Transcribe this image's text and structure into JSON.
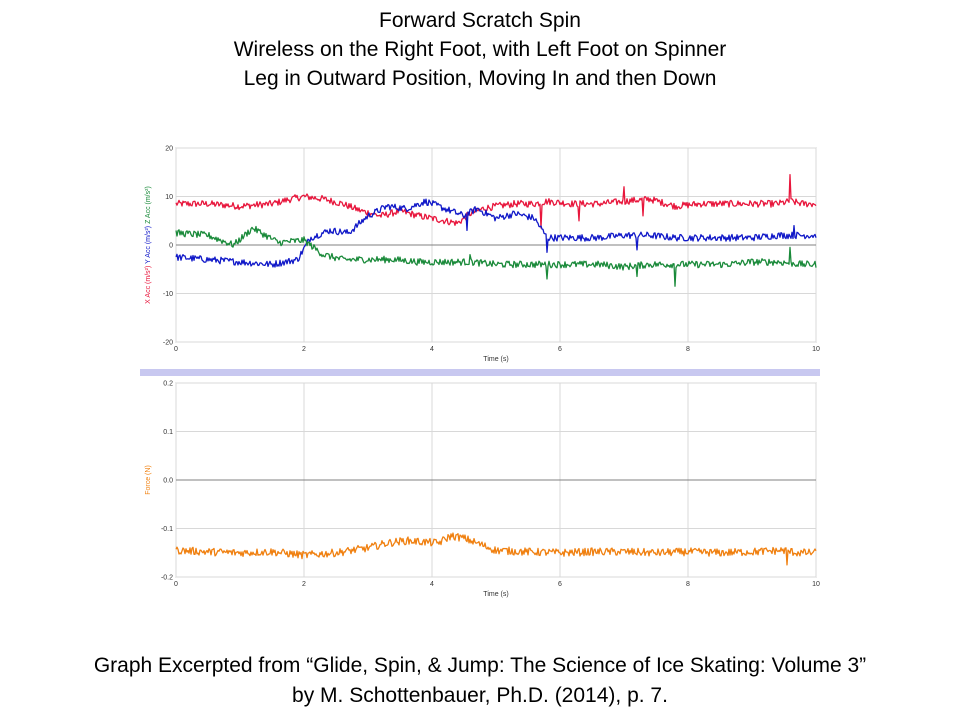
{
  "header": {
    "line1": "Forward Scratch Spin",
    "line2": "Wireless on the Right Foot, with Left Foot on Spinner",
    "line3": "Leg in Outward Position, Moving In and then Down"
  },
  "caption": {
    "line1": "Graph Excerpted from “Glide, Spin, & Jump: The Science of Ice Skating: Volume 3”",
    "line2": "by M. Schottenbauer, Ph.D. (2014), p. 7."
  },
  "colors": {
    "x_acc": "#e8163c",
    "y_acc": "#1018c8",
    "z_acc": "#1a8a3a",
    "force": "#f08010",
    "divider": "#c8c8f0",
    "grid": "#d8d8d8",
    "zero_line": "#808080"
  },
  "chart_data": [
    {
      "type": "line",
      "xlabel": "Time (s)",
      "ylabels": [
        "X Acc (m/s²)",
        "Y Acc (m/s²)",
        "Z Acc (m/s²)"
      ],
      "xlim": [
        0,
        10
      ],
      "ylim": [
        -20,
        20
      ],
      "x_ticks": [
        "0",
        "2",
        "4",
        "6",
        "8",
        "10"
      ],
      "y_ticks": [
        "20",
        "10",
        "0",
        "-10",
        "-20"
      ],
      "grid": true,
      "series": [
        {
          "name": "X Acc",
          "color_key": "x_acc",
          "x": [
            0,
            0.5,
            1.0,
            1.5,
            1.8,
            2.0,
            2.3,
            2.6,
            2.9,
            3.2,
            3.5,
            3.8,
            4.0,
            4.2,
            4.4,
            4.6,
            4.8,
            5.0,
            5.3,
            5.6,
            5.8,
            6.2,
            6.6,
            7.0,
            7.4,
            7.8,
            8.2,
            8.6,
            9.0,
            9.4,
            9.6,
            9.8,
            10.0
          ],
          "values": [
            8.5,
            8.5,
            8.0,
            8.5,
            9.5,
            10.0,
            9.5,
            8.5,
            7.0,
            6.0,
            7.0,
            6.0,
            5.5,
            5.0,
            4.5,
            6.5,
            7.5,
            8.0,
            8.5,
            8.5,
            9.0,
            8.5,
            8.5,
            9.0,
            9.5,
            8.0,
            8.5,
            8.5,
            8.5,
            8.5,
            9.0,
            8.5,
            8.5
          ],
          "spikes": [
            {
              "x": 5.7,
              "min": 3.5,
              "max": 13.5
            },
            {
              "x": 6.3,
              "min": 5.0,
              "max": 12.0
            },
            {
              "x": 7.0,
              "min": 5.5,
              "max": 12.0
            },
            {
              "x": 7.3,
              "min": 6.0,
              "max": 11.5
            },
            {
              "x": 9.6,
              "min": 4.5,
              "max": 14.5
            }
          ]
        },
        {
          "name": "Y Acc",
          "color_key": "y_acc",
          "x": [
            0,
            0.5,
            1.0,
            1.5,
            1.9,
            2.1,
            2.4,
            2.7,
            3.0,
            3.3,
            3.6,
            3.9,
            4.1,
            4.3,
            4.5,
            4.7,
            5.0,
            5.3,
            5.6,
            5.8,
            6.2,
            6.6,
            7.0,
            7.4,
            7.8,
            8.2,
            8.6,
            9.0,
            9.4,
            9.7,
            10.0
          ],
          "values": [
            -2.5,
            -3.0,
            -3.5,
            -4.0,
            -3.0,
            1.5,
            3.0,
            2.5,
            6.0,
            8.0,
            7.5,
            9.0,
            8.0,
            7.0,
            6.0,
            7.5,
            5.5,
            6.5,
            5.5,
            1.5,
            1.5,
            1.5,
            2.0,
            2.0,
            1.5,
            1.5,
            1.5,
            1.5,
            2.0,
            2.0,
            2.0
          ],
          "spikes": [
            {
              "x": 4.55,
              "min": 3.0,
              "max": 10.5
            },
            {
              "x": 5.8,
              "min": -1.5,
              "max": 5.0
            },
            {
              "x": 7.2,
              "min": -1.0,
              "max": 5.0
            },
            {
              "x": 9.65,
              "min": -1.0,
              "max": 4.0
            }
          ]
        },
        {
          "name": "Z Acc",
          "color_key": "z_acc",
          "x": [
            0,
            0.5,
            0.9,
            1.2,
            1.6,
            2.0,
            2.3,
            2.6,
            3.0,
            3.4,
            3.8,
            4.2,
            4.6,
            5.0,
            5.4,
            5.8,
            6.2,
            6.6,
            7.0,
            7.4,
            7.8,
            8.2,
            8.6,
            9.0,
            9.4,
            9.8,
            10.0
          ],
          "values": [
            2.5,
            2.0,
            0.0,
            3.5,
            0.5,
            1.0,
            -2.0,
            -3.0,
            -3.0,
            -3.0,
            -3.5,
            -3.5,
            -3.5,
            -4.0,
            -4.0,
            -4.0,
            -4.0,
            -4.0,
            -4.5,
            -4.0,
            -4.0,
            -4.0,
            -4.0,
            -3.5,
            -3.5,
            -4.0,
            -4.0
          ],
          "spikes": [
            {
              "x": 4.6,
              "min": -6.0,
              "max": -2.0
            },
            {
              "x": 5.8,
              "min": -7.0,
              "max": -2.5
            },
            {
              "x": 7.2,
              "min": -6.5,
              "max": -2.0
            },
            {
              "x": 7.8,
              "min": -8.5,
              "max": -3.0
            },
            {
              "x": 9.6,
              "min": -11.0,
              "max": -0.5
            }
          ]
        }
      ]
    },
    {
      "type": "line",
      "xlabel": "Time (s)",
      "ylabel": "Force (N)",
      "xlim": [
        0,
        10
      ],
      "ylim": [
        -0.2,
        0.2
      ],
      "x_ticks": [
        "0",
        "2",
        "4",
        "6",
        "8",
        "10"
      ],
      "y_ticks": [
        "0.2",
        "0.1",
        "0.0",
        "-0.1",
        "-0.2"
      ],
      "grid": true,
      "series": [
        {
          "name": "Force",
          "color_key": "force",
          "x": [
            0,
            0.5,
            1.0,
            1.5,
            2.0,
            2.5,
            3.0,
            3.3,
            3.6,
            3.9,
            4.1,
            4.3,
            4.5,
            4.8,
            5.0,
            5.5,
            6.0,
            6.5,
            7.0,
            7.5,
            8.0,
            8.5,
            9.0,
            9.5,
            9.7,
            10.0
          ],
          "values": [
            -0.145,
            -0.148,
            -0.15,
            -0.148,
            -0.155,
            -0.15,
            -0.14,
            -0.13,
            -0.125,
            -0.128,
            -0.13,
            -0.115,
            -0.12,
            -0.135,
            -0.145,
            -0.148,
            -0.15,
            -0.148,
            -0.148,
            -0.15,
            -0.148,
            -0.15,
            -0.148,
            -0.145,
            -0.15,
            -0.15
          ],
          "spikes": [
            {
              "x": 9.55,
              "min": -0.175,
              "max": -0.115
            }
          ]
        }
      ]
    }
  ]
}
